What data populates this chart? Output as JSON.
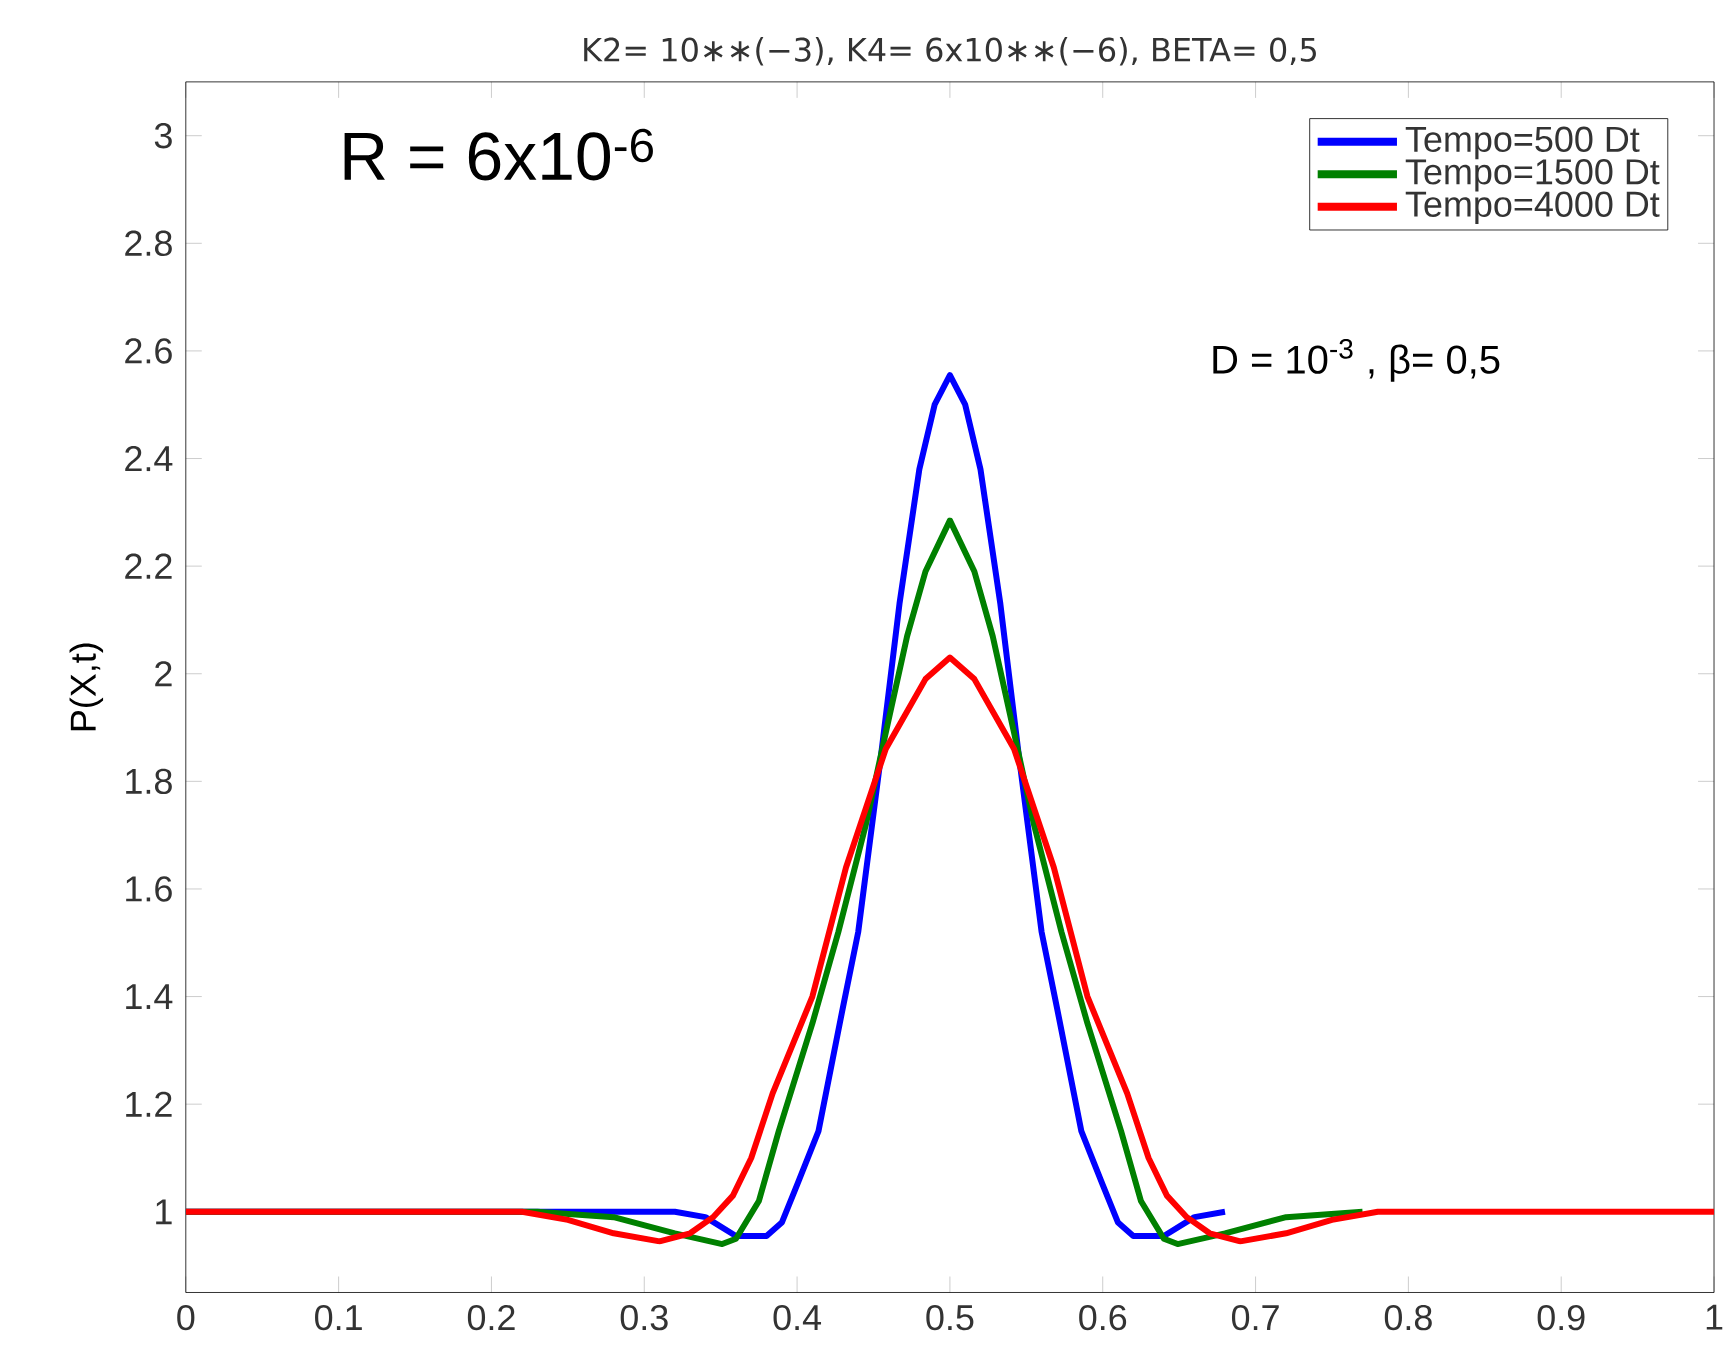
{
  "chart_data": {
    "type": "line",
    "title": "K2= 10∗∗(−3), K4= 6x10∗∗(−6), BETA= 0,5",
    "ylabel": "P(X,t)",
    "annotations": [
      "R  = 6x10$^{-6}$",
      "D = 10$^{-3}$ ,  β= 0,5"
    ],
    "xlim": [
      0,
      1
    ],
    "ylim": [
      0.85,
      3.1
    ],
    "xticks": [
      0,
      0.1,
      0.2,
      0.3,
      0.4,
      0.5,
      0.6,
      0.7,
      0.8,
      0.9,
      1
    ],
    "yticks": [
      1,
      1.2,
      1.4,
      1.6,
      1.8,
      2,
      2.2,
      2.4,
      2.6,
      2.8,
      3
    ],
    "legend": "top right",
    "marker": "none",
    "line_style": "solid",
    "series": [
      {
        "name": "Tempo=500 Dt",
        "color": "#0000ff",
        "x": [
          0,
          0.32,
          0.34,
          0.36,
          0.38,
          0.39,
          0.4,
          0.414,
          0.43,
          0.44,
          0.455,
          0.467,
          0.48,
          0.49,
          0.5,
          0.51,
          0.52,
          0.533,
          0.545,
          0.56,
          0.57,
          0.586,
          0.6,
          0.61,
          0.62,
          0.64,
          0.66,
          0.68
        ],
        "values": [
          1,
          1,
          0.99,
          0.955,
          0.955,
          0.98,
          1.05,
          1.15,
          1.38,
          1.52,
          1.85,
          2.13,
          2.38,
          2.5,
          2.555,
          2.5,
          2.38,
          2.13,
          1.85,
          1.52,
          1.38,
          1.15,
          1.05,
          0.98,
          0.955,
          0.955,
          0.99,
          1
        ]
      },
      {
        "name": "Tempo=1500 Dt",
        "color": "#008000",
        "x": [
          0,
          0.23,
          0.28,
          0.32,
          0.351,
          0.36,
          0.375,
          0.388,
          0.41,
          0.427,
          0.445,
          0.458,
          0.472,
          0.484,
          0.5,
          0.516,
          0.528,
          0.542,
          0.555,
          0.573,
          0.59,
          0.612,
          0.625,
          0.64,
          0.649,
          0.68,
          0.72,
          0.77
        ],
        "values": [
          1,
          1,
          0.99,
          0.96,
          0.94,
          0.95,
          1.02,
          1.15,
          1.35,
          1.52,
          1.72,
          1.89,
          2.07,
          2.19,
          2.285,
          2.19,
          2.07,
          1.89,
          1.72,
          1.52,
          1.35,
          1.15,
          1.02,
          0.95,
          0.94,
          0.96,
          0.99,
          1
        ]
      },
      {
        "name": "Tempo=4000 Dt",
        "color": "#ff0000",
        "x": [
          0,
          0.22,
          0.25,
          0.28,
          0.31,
          0.33,
          0.345,
          0.358,
          0.37,
          0.384,
          0.41,
          0.432,
          0.458,
          0.484,
          0.5,
          0.516,
          0.542,
          0.568,
          0.59,
          0.616,
          0.63,
          0.642,
          0.655,
          0.67,
          0.69,
          0.72,
          0.75,
          0.78,
          1
        ],
        "values": [
          1,
          1,
          0.985,
          0.96,
          0.945,
          0.96,
          0.99,
          1.03,
          1.1,
          1.22,
          1.4,
          1.64,
          1.86,
          1.99,
          2.03,
          1.99,
          1.86,
          1.64,
          1.4,
          1.22,
          1.1,
          1.03,
          0.99,
          0.96,
          0.945,
          0.96,
          0.985,
          1,
          1
        ]
      }
    ]
  }
}
